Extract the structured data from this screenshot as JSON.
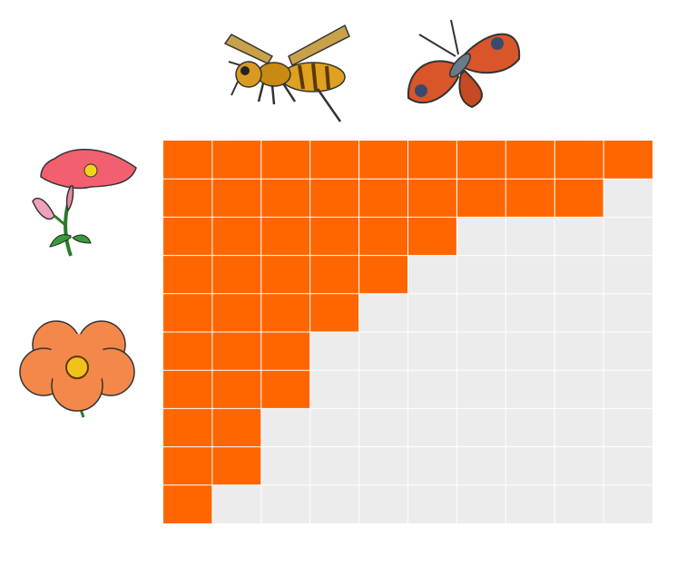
{
  "grid": {
    "rows": 10,
    "columns": 10,
    "filled": [
      10,
      9,
      6,
      5,
      4,
      3,
      3,
      2,
      2,
      1
    ],
    "fill_color": "#ff6600",
    "empty_color": "#ececec"
  }
}
